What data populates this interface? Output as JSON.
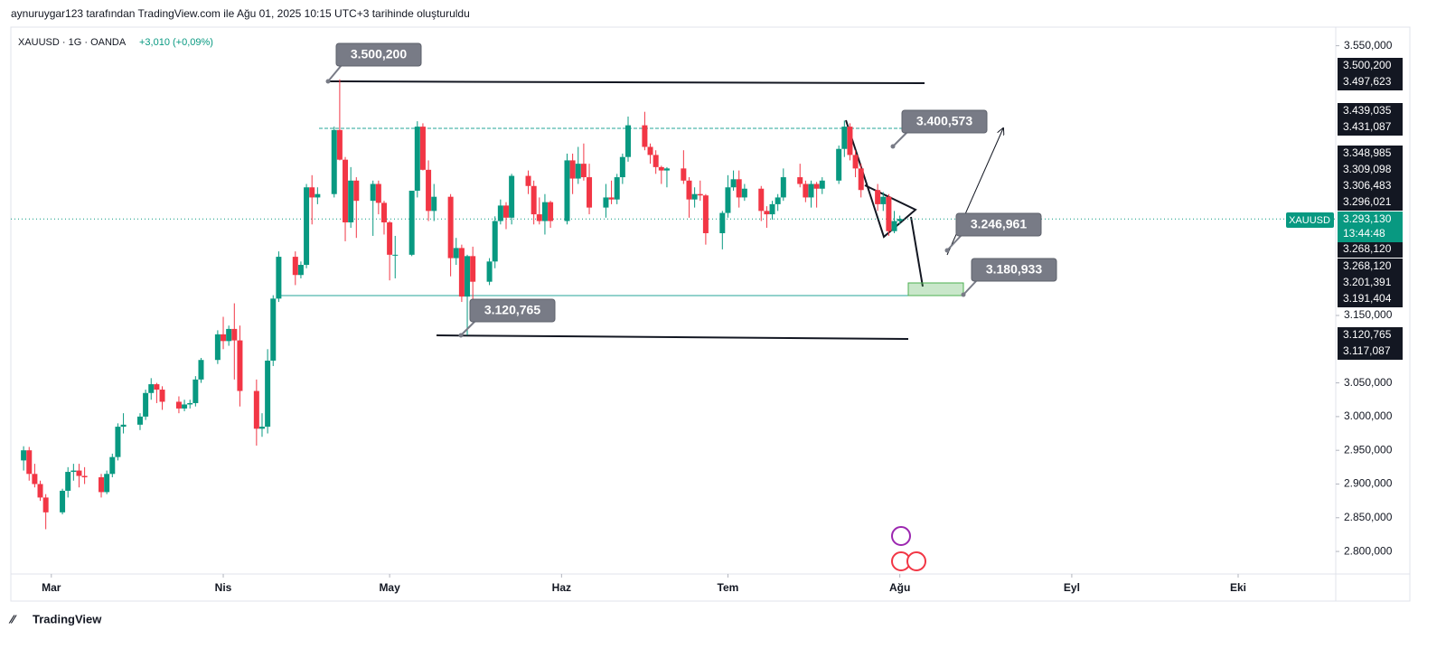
{
  "header": {
    "text": "aynuruygar123 tarafından TradingView.com ile Ağu 01, 2025 10:15 UTC+3 tarihinde oluşturuldu"
  },
  "footer": {
    "logo": "TradingView"
  },
  "chart_data": {
    "type": "candlestick",
    "symbol": "XAUUSD · 1G · OANDA",
    "change": "+3,010 (+0,09%)",
    "symbol_tag": "XAUUSD",
    "last_price": {
      "value": 3293.13,
      "label": "3.293,130"
    },
    "countdown": "13:44:48",
    "up_color": "#089981",
    "down_color": "#f23645",
    "xlim": [
      52.7,
      291.6
    ],
    "xticks": [
      {
        "value": 60,
        "label": "Mar"
      },
      {
        "value": 91,
        "label": "Nis"
      },
      {
        "value": 121,
        "label": "May"
      },
      {
        "value": 152,
        "label": "Haz"
      },
      {
        "value": 182,
        "label": "Tem"
      },
      {
        "value": 213,
        "label": "Ağu"
      },
      {
        "value": 244,
        "label": "Eyl"
      },
      {
        "value": 274,
        "label": "Eki"
      }
    ],
    "ylim": [
      2766.6,
      3577.6
    ],
    "yticks": [
      {
        "value": 3550,
        "label": "3.550,000"
      },
      {
        "value": 3150,
        "label": "3.150,000"
      },
      {
        "value": 3050,
        "label": "3.050,000"
      },
      {
        "value": 3000,
        "label": "3.000,000"
      },
      {
        "value": 2950,
        "label": "2.950,000"
      },
      {
        "value": 2900,
        "label": "2.900,000"
      },
      {
        "value": 2850,
        "label": "2.850,000"
      },
      {
        "value": 2800,
        "label": "2.800,000"
      }
    ],
    "x": [
      55,
      56,
      57,
      58,
      59,
      62,
      63,
      64,
      65,
      66,
      69,
      70,
      71,
      72,
      73,
      76,
      77,
      78,
      79,
      80,
      83,
      84,
      85,
      86,
      87,
      90,
      91,
      92,
      93,
      94,
      97,
      98,
      99,
      100,
      101,
      104,
      105,
      106,
      107,
      108,
      111,
      112,
      113,
      114,
      115,
      118,
      119,
      120,
      121,
      122,
      125,
      126,
      127,
      128,
      129,
      132,
      133,
      134,
      135,
      136,
      139,
      140,
      141,
      142,
      143,
      146,
      147,
      148,
      149,
      150,
      153,
      154,
      155,
      156,
      157,
      160,
      161,
      162,
      163,
      164,
      167,
      168,
      169,
      170,
      171,
      174,
      175,
      176,
      177,
      178,
      181,
      182,
      183,
      184,
      185,
      188,
      189,
      190,
      191,
      192,
      195,
      196,
      197,
      198,
      199,
      202,
      203,
      204,
      205,
      206,
      209,
      210,
      211,
      212,
      213
    ],
    "open": [
      2935,
      2950,
      2915,
      2900,
      2880,
      2858,
      2890,
      2918,
      2920,
      2912,
      2910,
      2888,
      2915,
      2940,
      2985,
      2988,
      3000,
      3035,
      3048,
      3040,
      3022,
      3012,
      3018,
      3020,
      3055,
      3084,
      3122,
      3112,
      3130,
      3113,
      3038,
      2982,
      2985,
      3083,
      3175,
      3237,
      3210,
      3225,
      3340,
      3325,
      3330,
      3425,
      3381,
      3288,
      3350,
      3320,
      3345,
      3317,
      3288,
      3240,
      3240,
      3335,
      3430,
      3366,
      3305,
      3326,
      3235,
      3250,
      3178,
      3238,
      3200,
      3230,
      3290,
      3313,
      3295,
      3357,
      3342,
      3300,
      3290,
      3318,
      3290,
      3380,
      3353,
      3375,
      3355,
      3310,
      3325,
      3322,
      3355,
      3385,
      3432,
      3400,
      3388,
      3370,
      3365,
      3368,
      3350,
      3322,
      3330,
      3328,
      3272,
      3302,
      3340,
      3352,
      3325,
      3338,
      3305,
      3300,
      3315,
      3325,
      3355,
      3345,
      3325,
      3345,
      3338,
      3350,
      3397,
      3430,
      3388,
      3368,
      3336,
      3315,
      3326,
      3275,
      3290
    ],
    "high": [
      2956,
      2955,
      2930,
      2905,
      2885,
      2893,
      2925,
      2930,
      2930,
      2925,
      2915,
      2920,
      2945,
      2990,
      3005,
      3005,
      3040,
      3057,
      3050,
      3045,
      3030,
      3025,
      3025,
      3060,
      3087,
      3128,
      3148,
      3135,
      3168,
      3135,
      3055,
      3005,
      3100,
      3180,
      3245,
      3245,
      3230,
      3345,
      3358,
      3340,
      3430,
      3500.2,
      3385,
      3370,
      3355,
      3350,
      3350,
      3320,
      3290,
      3268,
      3330,
      3438,
      3435,
      3380,
      3345,
      3330,
      3265,
      3255,
      3240,
      3252,
      3235,
      3297,
      3322,
      3318,
      3360,
      3365,
      3350,
      3325,
      3330,
      3320,
      3390,
      3390,
      3400,
      3405,
      3375,
      3345,
      3350,
      3360,
      3390,
      3445,
      3452,
      3405,
      3395,
      3372,
      3370,
      3395,
      3355,
      3340,
      3350,
      3330,
      3305,
      3358,
      3365,
      3365,
      3345,
      3342,
      3312,
      3320,
      3330,
      3368,
      3375,
      3350,
      3350,
      3348,
      3355,
      3402,
      3439.035,
      3435,
      3395,
      3375,
      3345,
      3333,
      3330,
      3305,
      3298
    ],
    "low": [
      2920,
      2905,
      2895,
      2875,
      2833,
      2855,
      2880,
      2905,
      2895,
      2900,
      2880,
      2885,
      2910,
      2935,
      2975,
      2980,
      2995,
      3025,
      3020,
      3010,
      3005,
      3008,
      3012,
      3015,
      3050,
      3078,
      3100,
      3105,
      3055,
      3015,
      2957,
      2970,
      2975,
      3075,
      3170,
      3195,
      3205,
      3220,
      3285,
      3315,
      3325,
      3380,
      3260,
      3280,
      3265,
      3268,
      3300,
      3270,
      3202,
      3205,
      3238,
      3325,
      3365,
      3290,
      3290,
      3208,
      3225,
      3170,
      3120.765,
      3150,
      3195,
      3220,
      3285,
      3278,
      3285,
      3330,
      3285,
      3285,
      3270,
      3280,
      3285,
      3330,
      3345,
      3350,
      3300,
      3295,
      3315,
      3315,
      3345,
      3378,
      3395,
      3375,
      3360,
      3345,
      3340,
      3345,
      3295,
      3310,
      3320,
      3255,
      3248,
      3295,
      3335,
      3310,
      3320,
      3290,
      3280,
      3292,
      3305,
      3320,
      3340,
      3318,
      3310,
      3310,
      3330,
      3345,
      3385,
      3380,
      3355,
      3325,
      3305,
      3305,
      3268,
      3272,
      3285
    ],
    "close": [
      2950,
      2915,
      2900,
      2880,
      2858,
      2890,
      2918,
      2920,
      2912,
      2910,
      2888,
      2915,
      2940,
      2985,
      2988,
      3000,
      3035,
      3048,
      3040,
      3022,
      3012,
      3018,
      3020,
      3055,
      3084,
      3122,
      3112,
      3130,
      3113,
      3038,
      2982,
      2985,
      3083,
      3175,
      3237,
      3210,
      3225,
      3340,
      3325,
      3330,
      3425,
      3381,
      3288,
      3350,
      3320,
      3345,
      3317,
      3288,
      3240,
      3240,
      3335,
      3430,
      3366,
      3305,
      3326,
      3235,
      3250,
      3178,
      3238,
      3200,
      3230,
      3290,
      3313,
      3295,
      3357,
      3342,
      3300,
      3290,
      3318,
      3290,
      3380,
      3353,
      3375,
      3355,
      3310,
      3325,
      3322,
      3355,
      3385,
      3432,
      3400,
      3388,
      3370,
      3365,
      3368,
      3350,
      3322,
      3330,
      3328,
      3272,
      3302,
      3340,
      3352,
      3325,
      3338,
      3305,
      3300,
      3315,
      3325,
      3355,
      3345,
      3325,
      3345,
      3338,
      3350,
      3397,
      3430,
      3388,
      3368,
      3336,
      3315,
      3326,
      3275,
      3290,
      3293.13
    ],
    "annotations": [
      {
        "value": 3500.2,
        "label": "3.500,200"
      },
      {
        "value": 3400.573,
        "label": "3.400,573"
      },
      {
        "value": 3246.961,
        "label": "3.246,961"
      },
      {
        "value": 3180.933,
        "label": "3.180,933"
      },
      {
        "value": 3120.765,
        "label": "3.120,765"
      }
    ],
    "price_tags": [
      {
        "value": 3500.2,
        "label": "3.500,200"
      },
      {
        "value": 3497.623,
        "label": "3.497,623"
      },
      {
        "value": 3439.035,
        "label": "3.439,035"
      },
      {
        "value": 3431.087,
        "label": "3.431,087"
      },
      {
        "value": 3348.985,
        "label": "3.348,985"
      },
      {
        "value": 3309.098,
        "label": "3.309,098"
      },
      {
        "value": 3306.483,
        "label": "3.306,483"
      },
      {
        "value": 3296.021,
        "label": "3.296,021"
      },
      {
        "value": 3268.12,
        "label": "3.268,120"
      },
      {
        "value": 3268.12,
        "label": "3.268,120"
      },
      {
        "value": 3201.391,
        "label": "3.201,391"
      },
      {
        "value": 3191.404,
        "label": "3.191,404"
      },
      {
        "value": 3120.765,
        "label": "3.120,765"
      },
      {
        "value": 3117.087,
        "label": "3.117,087"
      }
    ]
  }
}
